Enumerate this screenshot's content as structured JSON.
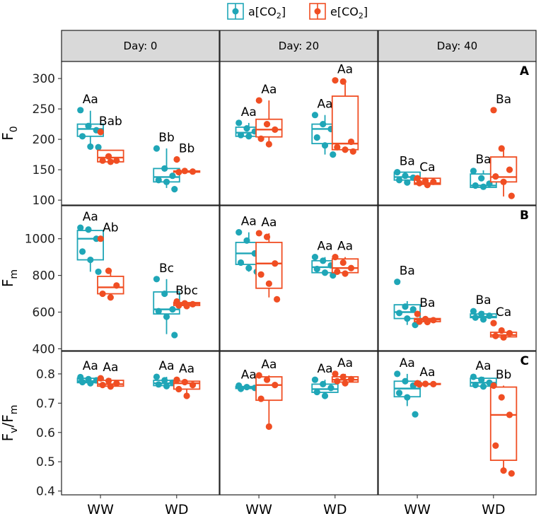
{
  "chart_data": {
    "type": "boxplot",
    "facets": [
      "Day: 0",
      "Day: 20",
      "Day: 40"
    ],
    "categories": [
      "WW",
      "WD"
    ],
    "legend": [
      {
        "name": "a[CO",
        "sub": "2",
        "tail": "]",
        "color": "#1fa6b7"
      },
      {
        "name": "e[CO",
        "sub": "2",
        "tail": "]",
        "color": "#f04e23"
      }
    ],
    "rows": [
      {
        "panel_label": "A",
        "ylabel": "F",
        "ylabel_sub": "0",
        "ylim": [
          92,
          328
        ],
        "yticks": [
          100,
          150,
          200,
          250,
          300
        ],
        "data": [
          [
            [
              {
                "box": [
                  183,
                  205,
                  217,
                  225,
                  247
                ],
                "points": [
                  248,
                  222,
                  215,
                  205,
                  188,
                  187
                ],
                "letter": "Aa"
              },
              {
                "box": [
                  163,
                  163,
                  170,
                  182,
                  182
                ],
                "points": [
                  212,
                  172,
                  165,
                  165,
                  163
                ],
                "letter": "Bab"
              }
            ],
            [
              {
                "box": [
                  120,
                  130,
                  138,
                  152,
                  185
                ],
                "points": [
                  185,
                  152,
                  140,
                  133,
                  130,
                  118
                ],
                "letter": "Bb"
              },
              {
                "box": [
                  146,
                  146,
                  147,
                  148,
                  148
                ],
                "points": [
                  167,
                  148,
                  147,
                  146
                ],
                "letter": "Bb"
              }
            ]
          ],
          [
            [
              {
                "box": [
                  203,
                  205,
                  211,
                  220,
                  227
                ],
                "points": [
                  227,
                  218,
                  213,
                  207,
                  205
                ],
                "letter": "Aa"
              },
              {
                "box": [
                  192,
                  204,
                  216,
                  233,
                  264
                ],
                "points": [
                  264,
                  225,
                  216,
                  201,
                  192
                ],
                "letter": "Aa"
              }
            ],
            [
              {
                "box": [
                  175,
                  193,
                  217,
                  225,
                  240
                ],
                "points": [
                  240,
                  225,
                  217,
                  203,
                  190,
                  175
                ],
                "letter": "Aa"
              },
              {
                "box": [
                  181,
                  183,
                  193,
                  271,
                  297
                ],
                "points": [
                  297,
                  295,
                  196,
                  187,
                  183,
                  180
                ],
                "letter": "Aa"
              }
            ]
          ],
          [
            [
              {
                "box": [
                  128,
                  133,
                  138,
                  146,
                  146
                ],
                "points": [
                  146,
                  140,
                  137,
                  133,
                  129
                ],
                "letter": "Ba"
              },
              {
                "box": [
                  125,
                  126,
                  128,
                  136,
                  136
                ],
                "points": [
                  136,
                  132,
                  130,
                  128,
                  125
                ],
                "letter": "Ca"
              }
            ],
            [
              {
                "box": [
                  121,
                  121,
                  124,
                  143,
                  149
                ],
                "points": [
                  148,
                  136,
                  127,
                  124,
                  122
                ],
                "letter": "Ba"
              },
              {
                "box": [
                  106,
                  130,
                  138,
                  171,
                  185
                ],
                "points": [
                  248,
                  185,
                  150,
                  139,
                  130,
                  107
                ],
                "letter": "Ba"
              }
            ]
          ]
        ]
      },
      {
        "panel_label": "B",
        "ylabel": "F",
        "ylabel_sub": "m",
        "ylim": [
          390,
          1180
        ],
        "yticks": [
          400,
          600,
          800,
          1000
        ],
        "data": [
          [
            [
              {
                "box": [
                  820,
                  885,
                  1000,
                  1045,
                  1060
                ],
                "points": [
                  1060,
                  1050,
                  1000,
                  930,
                  885,
                  820
                ],
                "letter": "Aa"
              },
              {
                "box": [
                  680,
                  700,
                  735,
                  795,
                  825
                ],
                "points": [
                  1000,
                  825,
                  745,
                  700,
                  680
                ],
                "letter": "Ab"
              }
            ],
            [
              {
                "box": [
                  480,
                  590,
                  615,
                  710,
                  780
                ],
                "points": [
                  780,
                  700,
                  615,
                  605,
                  575,
                  475
                ],
                "letter": "Bc"
              },
              {
                "box": [
                  633,
                  636,
                  645,
                  652,
                  658
                ],
                "points": [
                  658,
                  648,
                  643,
                  636,
                  633
                ],
                "letter": "Bbc"
              }
            ]
          ],
          [
            [
              {
                "box": [
                  820,
                  860,
                  920,
                  980,
                  1035
                ],
                "points": [
                  1035,
                  990,
                  920,
                  870,
                  840,
                  820
                ],
                "letter": "Aa"
              },
              {
                "box": [
                  680,
                  730,
                  865,
                  980,
                  1030
                ],
                "points": [
                  1030,
                  1010,
                  865,
                  805,
                  755,
                  670
                ],
                "letter": "Aa"
              }
            ],
            [
              {
                "box": [
                  800,
                  815,
                  845,
                  880,
                  900
                ],
                "points": [
                  900,
                  880,
                  855,
                  835,
                  815,
                  800
                ],
                "letter": "Aa"
              },
              {
                "box": [
                  810,
                  815,
                  840,
                  890,
                  900
                ],
                "points": [
                  900,
                  870,
                  840,
                  820,
                  810
                ],
                "letter": "Aa"
              }
            ]
          ],
          [
            [
              {
                "box": [
                  530,
                  565,
                  600,
                  640,
                  660
                ],
                "points": [
                  765,
                  630,
                  615,
                  595,
                  565,
                  530
                ],
                "letter": "Ba"
              },
              {
                "box": [
                  546,
                  548,
                  559,
                  565,
                  570
                ],
                "points": [
                  590,
                  562,
                  556,
                  548,
                  546
                ],
                "letter": "Ba"
              }
            ],
            [
              {
                "box": [
                  560,
                  570,
                  575,
                  590,
                  605
                ],
                "points": [
                  605,
                  590,
                  580,
                  570,
                  560
                ],
                "letter": "Ba"
              },
              {
                "box": [
                  460,
                  465,
                  475,
                  490,
                  500
                ],
                "points": [
                  540,
                  500,
                  485,
                  470,
                  462
                ],
                "letter": "Ca"
              }
            ]
          ]
        ]
      },
      {
        "panel_label": "C",
        "ylabel": "F",
        "ylabel_sub": "v",
        "ylabel_mid": "/F",
        "ylabel_sub2": "m",
        "ylim": [
          0.387,
          0.877
        ],
        "yticks": [
          0.4,
          0.5,
          0.6,
          0.7,
          0.8
        ],
        "data": [
          [
            [
              {
                "box": [
                  0.765,
                  0.77,
                  0.775,
                  0.785,
                  0.79
                ],
                "points": [
                  0.789,
                  0.782,
                  0.778,
                  0.772,
                  0.768
                ],
                "letter": "Aa"
              },
              {
                "box": [
                  0.755,
                  0.758,
                  0.765,
                  0.778,
                  0.785
                ],
                "points": [
                  0.785,
                  0.776,
                  0.768,
                  0.762,
                  0.757
                ],
                "letter": "Aa"
              }
            ],
            [
              {
                "box": [
                  0.755,
                  0.76,
                  0.768,
                  0.778,
                  0.79
                ],
                "points": [
                  0.79,
                  0.778,
                  0.77,
                  0.764,
                  0.758
                ],
                "letter": "Aa"
              },
              {
                "box": [
                  0.725,
                  0.748,
                  0.768,
                  0.775,
                  0.78
                ],
                "points": [
                  0.78,
                  0.772,
                  0.762,
                  0.748,
                  0.725
                ],
                "letter": "Aa"
              }
            ]
          ],
          [
            [
              {
                "box": [
                  0.748,
                  0.75,
                  0.753,
                  0.757,
                  0.76
                ],
                "points": [
                  0.76,
                  0.755,
                  0.752,
                  0.749
                ],
                "letter": "Aa"
              },
              {
                "box": [
                  0.625,
                  0.71,
                  0.762,
                  0.79,
                  0.795
                ],
                "points": [
                  0.795,
                  0.78,
                  0.762,
                  0.715,
                  0.62
                ],
                "letter": "Aa"
              }
            ],
            [
              {
                "box": [
                  0.725,
                  0.737,
                  0.748,
                  0.765,
                  0.78
                ],
                "points": [
                  0.78,
                  0.765,
                  0.752,
                  0.738,
                  0.725
                ],
                "letter": "Aa"
              },
              {
                "box": [
                  0.765,
                  0.772,
                  0.78,
                  0.79,
                  0.8
                ],
                "points": [
                  0.8,
                  0.79,
                  0.782,
                  0.775,
                  0.768
                ],
                "letter": "Aa"
              }
            ]
          ],
          [
            [
              {
                "box": [
                  0.69,
                  0.722,
                  0.75,
                  0.775,
                  0.8
                ],
                "points": [
                  0.8,
                  0.775,
                  0.76,
                  0.735,
                  0.72,
                  0.662
                ],
                "letter": "Aa"
              },
              {
                "box": [
                  0.763,
                  0.764,
                  0.765,
                  0.767,
                  0.768
                ],
                "points": [
                  0.768,
                  0.766,
                  0.765,
                  0.764
                ],
                "letter": "Aa"
              }
            ],
            [
              {
                "box": [
                  0.755,
                  0.758,
                  0.77,
                  0.785,
                  0.79
                ],
                "points": [
                  0.79,
                  0.78,
                  0.77,
                  0.762,
                  0.757
                ],
                "letter": "Aa"
              },
              {
                "box": [
                  0.46,
                  0.505,
                  0.66,
                  0.755,
                  0.76
                ],
                "points": [
                  0.76,
                  0.72,
                  0.66,
                  0.555,
                  0.47,
                  0.46
                ],
                "letter": "Bb"
              }
            ]
          ]
        ]
      }
    ]
  }
}
